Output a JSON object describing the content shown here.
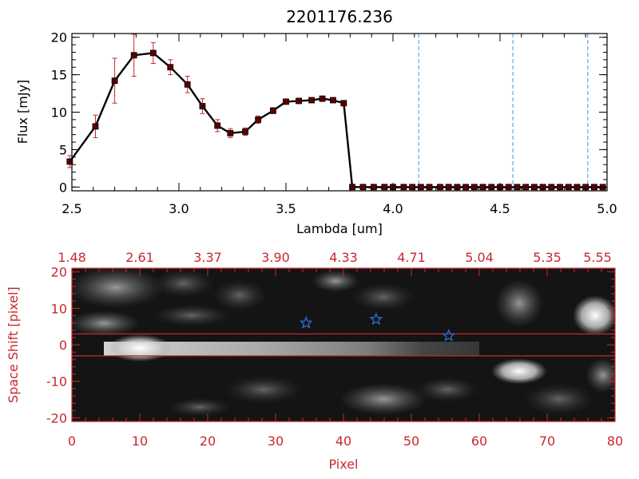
{
  "chart_data": [
    {
      "type": "line",
      "title": "2201176.236",
      "xlabel": "Lambda [um]",
      "ylabel": "Flux [mJy]",
      "xlim": [
        2.5,
        5.0
      ],
      "ylim": [
        -0.5,
        20.5
      ],
      "xticks": [
        "2.5",
        "3.0",
        "3.5",
        "4.0",
        "4.5",
        "5.0"
      ],
      "yticks": [
        "0",
        "5",
        "10",
        "15",
        "20"
      ],
      "grid": false,
      "line_color": "#000000",
      "marker_color": "#5a0000",
      "errorbar_color": "#c8282d",
      "vline_color": "#4a90d9",
      "vlines": [
        4.12,
        4.56,
        4.91
      ],
      "series": [
        {
          "x": [
            2.49,
            2.61,
            2.7,
            2.79,
            2.88,
            2.96,
            3.04,
            3.11,
            3.18,
            3.24,
            3.31,
            3.37,
            3.44,
            3.5,
            3.56,
            3.62,
            3.67,
            3.72,
            3.77,
            3.81,
            3.86,
            3.91,
            3.96,
            4.0,
            4.05,
            4.09,
            4.13,
            4.17,
            4.22,
            4.26,
            4.3,
            4.34,
            4.38,
            4.42,
            4.46,
            4.5,
            4.54,
            4.58,
            4.62,
            4.66,
            4.7,
            4.74,
            4.78,
            4.82,
            4.86,
            4.9,
            4.94,
            4.98
          ],
          "y": [
            3.4,
            8.1,
            14.2,
            17.6,
            17.9,
            16.0,
            13.7,
            10.8,
            8.2,
            7.2,
            7.4,
            9.0,
            10.2,
            11.4,
            11.5,
            11.6,
            11.8,
            11.6,
            11.2,
            0.0,
            0.0,
            0.0,
            0.0,
            0.0,
            0.0,
            0.0,
            0.0,
            0.0,
            0.0,
            0.0,
            0.0,
            0.0,
            0.0,
            0.0,
            0.0,
            0.0,
            0.0,
            0.0,
            0.0,
            0.0,
            0.0,
            0.0,
            0.0,
            0.0,
            0.0,
            0.0,
            0.0,
            0.0
          ],
          "err": [
            0.8,
            1.5,
            3.0,
            2.8,
            1.4,
            1.0,
            1.1,
            1.0,
            0.8,
            0.6,
            0.5,
            0.5,
            0.4,
            0.3,
            0.3,
            0.3,
            0.3,
            0.3,
            0.3,
            0.2,
            0.2,
            0.2,
            0.2,
            0.2,
            0.2,
            0.2,
            0.2,
            0.2,
            0.2,
            0.2,
            0.2,
            0.2,
            0.2,
            0.2,
            0.2,
            0.2,
            0.2,
            0.2,
            0.2,
            0.2,
            0.2,
            0.2,
            0.2,
            0.2,
            0.2,
            0.2,
            0.2,
            0.2
          ]
        }
      ]
    },
    {
      "type": "heatmap",
      "xlabel": "Pixel",
      "ylabel": "Space Shift [pixel]",
      "xlim": [
        0,
        80
      ],
      "ylim": [
        -21,
        21
      ],
      "xticks": [
        "0",
        "10",
        "20",
        "30",
        "40",
        "50",
        "60",
        "70",
        "80"
      ],
      "yticks": [
        "-20",
        "-10",
        "0",
        "10",
        "20"
      ],
      "top_ticks": [
        "1.48",
        "2.61",
        "3.37",
        "3.90",
        "4.33",
        "4.71",
        "5.04",
        "5.35",
        "5.55"
      ],
      "axis_color": "#c8282d",
      "hlines": [
        3,
        -3
      ],
      "star_color": "#2f6fd6",
      "stars": [
        {
          "x": 34.5,
          "y": 6
        },
        {
          "x": 44.8,
          "y": 7
        },
        {
          "x": 55.5,
          "y": 2.5
        }
      ]
    }
  ]
}
